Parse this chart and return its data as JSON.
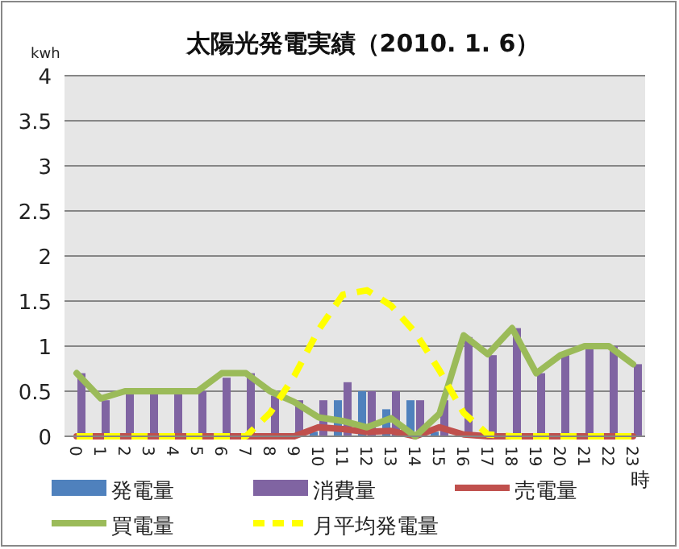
{
  "chart_data": {
    "type": "bar",
    "title": "太陽光発電実績（2010. 1. 6）",
    "ylabel": "kwh",
    "xlabel": "時",
    "categories": [
      "0",
      "1",
      "2",
      "3",
      "4",
      "5",
      "6",
      "7",
      "8",
      "9",
      "10",
      "11",
      "12",
      "13",
      "14",
      "15",
      "16",
      "17",
      "18",
      "19",
      "20",
      "21",
      "22",
      "23"
    ],
    "series": [
      {
        "name": "発電量",
        "color": "#4f81bd",
        "values": [
          0,
          0,
          0,
          0,
          0,
          0,
          0,
          0,
          0,
          0,
          0.05,
          0.4,
          0.5,
          0.3,
          0.4,
          0.05,
          0,
          0,
          0,
          0,
          0,
          0,
          0,
          0
        ]
      },
      {
        "name": "消費量",
        "color": "#8064a2",
        "values": [
          0.7,
          0.4,
          0.5,
          0.5,
          0.5,
          0.5,
          0.65,
          0.7,
          0.45,
          0.4,
          0.4,
          0.6,
          0.5,
          0.5,
          0.4,
          0.4,
          1.1,
          0.9,
          1.2,
          0.7,
          0.9,
          1.0,
          1.0,
          0.8
        ]
      },
      {
        "name": "売電量",
        "type": "line",
        "color": "#c0504d",
        "line_style": "solid",
        "values": [
          0,
          0,
          0,
          0,
          0,
          0,
          0,
          0,
          0,
          0,
          0.1,
          0.08,
          0.05,
          0.06,
          0,
          0.1,
          0.02,
          0,
          0,
          0,
          0,
          0,
          0,
          0
        ]
      },
      {
        "name": "買電量",
        "type": "line",
        "color": "#9bbb59",
        "line_style": "solid",
        "values": [
          0.7,
          0.42,
          0.5,
          0.5,
          0.5,
          0.5,
          0.7,
          0.7,
          0.5,
          0.38,
          0.21,
          0.17,
          0.1,
          0.2,
          0,
          0.25,
          1.12,
          0.91,
          1.2,
          0.7,
          0.9,
          1.0,
          1.0,
          0.8
        ]
      },
      {
        "name": "月平均発電量",
        "type": "line",
        "color": "#ffff00",
        "line_style": "dashed",
        "values": [
          0,
          0,
          0,
          0,
          0,
          0,
          0,
          0,
          0.26,
          0.67,
          1.18,
          1.57,
          1.62,
          1.45,
          1.15,
          0.73,
          0.26,
          0.02,
          0,
          0,
          0,
          0,
          0,
          0
        ]
      }
    ],
    "ylim": [
      0,
      4
    ],
    "yticks": [
      0,
      0.5,
      1,
      1.5,
      2,
      2.5,
      3,
      3.5,
      4
    ],
    "grid": "y",
    "legend": "bottom"
  }
}
